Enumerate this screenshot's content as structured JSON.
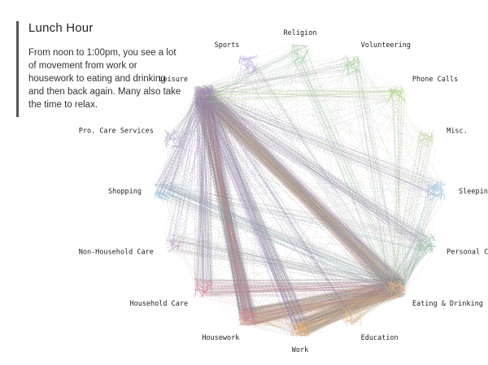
{
  "caption": {
    "title": "Lunch Hour",
    "body": "From noon to 1:00pm, you see a lot of movement from work or housework to eating and drinking and then back again. Many also take the time to relax."
  },
  "chart_data": {
    "type": "network",
    "title": "Lunch Hour",
    "description": "Activity transitions between noon and 1:00pm drawn as lines between activity nodes arranged in a circle",
    "nodes": [
      {
        "id": "religion",
        "label": "Religion",
        "color": "#9ec9a0"
      },
      {
        "id": "volunteering",
        "label": "Volunteering",
        "color": "#a8d49a"
      },
      {
        "id": "phone_calls",
        "label": "Phone Calls",
        "color": "#b9d98f"
      },
      {
        "id": "misc",
        "label": "Misc.",
        "color": "#c9d6a8"
      },
      {
        "id": "sleeping",
        "label": "Sleeping",
        "color": "#8fc3df"
      },
      {
        "id": "personal_care",
        "label": "Personal Care",
        "color": "#93c7a4"
      },
      {
        "id": "eating_drinking",
        "label": "Eating & Drinking",
        "color": "#e5b98a"
      },
      {
        "id": "education",
        "label": "Education",
        "color": "#e6c38f"
      },
      {
        "id": "work",
        "label": "Work",
        "color": "#f0a860"
      },
      {
        "id": "housework",
        "label": "Housework",
        "color": "#e08a8a"
      },
      {
        "id": "household_care",
        "label": "Household Care",
        "color": "#d98c9c"
      },
      {
        "id": "non_household_care",
        "label": "Non-Household Care",
        "color": "#c9b1c9"
      },
      {
        "id": "shopping",
        "label": "Shopping",
        "color": "#8fc0d9"
      },
      {
        "id": "pro_care_services",
        "label": "Pro. Care Services",
        "color": "#b7b0cf"
      },
      {
        "id": "leisure",
        "label": "Leisure",
        "color": "#a98bd0"
      },
      {
        "id": "sports",
        "label": "Sports",
        "color": "#b9a4d6"
      }
    ],
    "links": [
      {
        "from": "work",
        "to": "eating_drinking",
        "weight": 9
      },
      {
        "from": "eating_drinking",
        "to": "work",
        "weight": 9
      },
      {
        "from": "housework",
        "to": "eating_drinking",
        "weight": 7
      },
      {
        "from": "eating_drinking",
        "to": "housework",
        "weight": 6
      },
      {
        "from": "leisure",
        "to": "eating_drinking",
        "weight": 10
      },
      {
        "from": "eating_drinking",
        "to": "leisure",
        "weight": 10
      },
      {
        "from": "leisure",
        "to": "work",
        "weight": 6
      },
      {
        "from": "leisure",
        "to": "housework",
        "weight": 7
      },
      {
        "from": "housework",
        "to": "leisure",
        "weight": 6
      },
      {
        "from": "household_care",
        "to": "eating_drinking",
        "weight": 4
      },
      {
        "from": "leisure",
        "to": "household_care",
        "weight": 4
      },
      {
        "from": "shopping",
        "to": "eating_drinking",
        "weight": 3
      },
      {
        "from": "leisure",
        "to": "shopping",
        "weight": 3
      },
      {
        "from": "personal_care",
        "to": "eating_drinking",
        "weight": 3
      },
      {
        "from": "leisure",
        "to": "personal_care",
        "weight": 3
      },
      {
        "from": "education",
        "to": "eating_drinking",
        "weight": 2
      },
      {
        "from": "work",
        "to": "housework",
        "weight": 2
      },
      {
        "from": "leisure",
        "to": "sleeping",
        "weight": 2
      },
      {
        "from": "phone_calls",
        "to": "eating_drinking",
        "weight": 1
      },
      {
        "from": "volunteering",
        "to": "eating_drinking",
        "weight": 1
      },
      {
        "from": "religion",
        "to": "eating_drinking",
        "weight": 1
      },
      {
        "from": "sports",
        "to": "eating_drinking",
        "weight": 1
      },
      {
        "from": "non_household_care",
        "to": "eating_drinking",
        "weight": 2
      },
      {
        "from": "pro_care_services",
        "to": "leisure",
        "weight": 1
      },
      {
        "from": "leisure",
        "to": "education",
        "weight": 2
      },
      {
        "from": "misc",
        "to": "eating_drinking",
        "weight": 1
      },
      {
        "from": "shopping",
        "to": "personal_care",
        "weight": 1
      },
      {
        "from": "sleeping",
        "to": "eating_drinking",
        "weight": 1
      },
      {
        "from": "leisure",
        "to": "non_household_care",
        "weight": 1
      },
      {
        "from": "volunteering",
        "to": "leisure",
        "weight": 1
      },
      {
        "from": "phone_calls",
        "to": "leisure",
        "weight": 1
      },
      {
        "from": "religion",
        "to": "leisure",
        "weight": 1
      }
    ]
  }
}
